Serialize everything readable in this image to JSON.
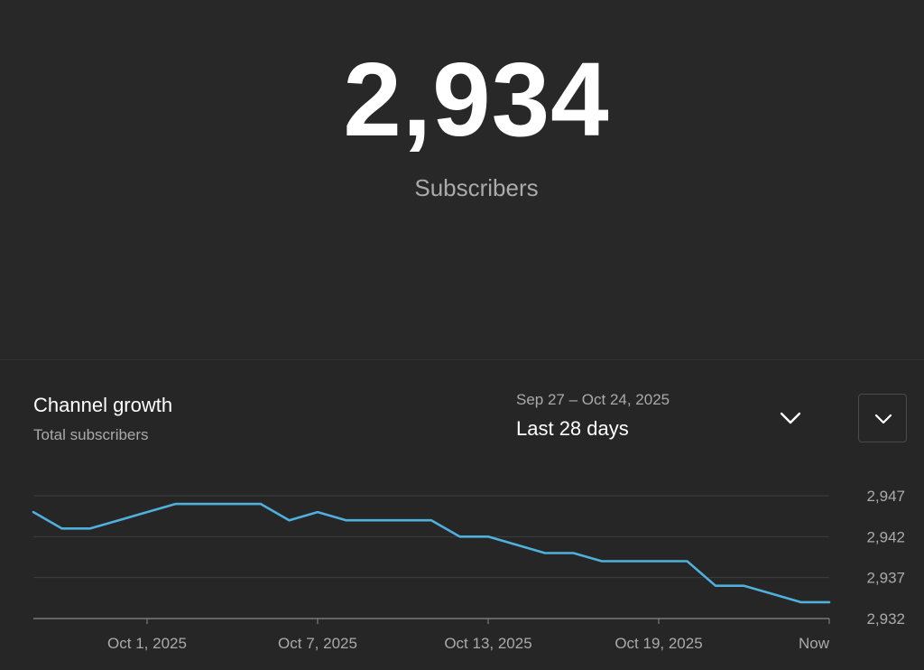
{
  "summary": {
    "count": "2,934",
    "label": "Subscribers"
  },
  "growth": {
    "title": "Channel growth",
    "subtitle": "Total subscribers",
    "date_range": "Sep 27 – Oct 24, 2025",
    "period": "Last 28 days"
  },
  "icons": {
    "period_dropdown": "chevron-down-icon",
    "expand": "chevron-down-icon"
  },
  "colors": {
    "background": "#282828",
    "line": "#4fb0dc",
    "grid": "#3d3d3d",
    "text_secondary": "#aaaaaa"
  },
  "chart_data": {
    "type": "line",
    "title": "",
    "xlabel": "",
    "ylabel": "",
    "ylim": [
      2932,
      2947
    ],
    "yticks": [
      "2,947",
      "2,942",
      "2,937",
      "2,932"
    ],
    "ytick_values": [
      2947,
      2942,
      2937,
      2932
    ],
    "xticks": [
      {
        "label": "Oct 1, 2025",
        "index": 4
      },
      {
        "label": "Oct 7, 2025",
        "index": 10
      },
      {
        "label": "Oct 13, 2025",
        "index": 16
      },
      {
        "label": "Oct 19, 2025",
        "index": 22
      },
      {
        "label": "Now",
        "index": 28
      }
    ],
    "grid": true,
    "series": [
      {
        "values": [
          2945,
          2943,
          2943,
          2944,
          2945,
          2946,
          2946,
          2946,
          2946,
          2944,
          2945,
          2944,
          2944,
          2944,
          2944,
          2942,
          2942,
          2941,
          2940,
          2940,
          2939,
          2939,
          2939,
          2939,
          2936,
          2936,
          2935,
          2934,
          2934
        ]
      }
    ]
  }
}
